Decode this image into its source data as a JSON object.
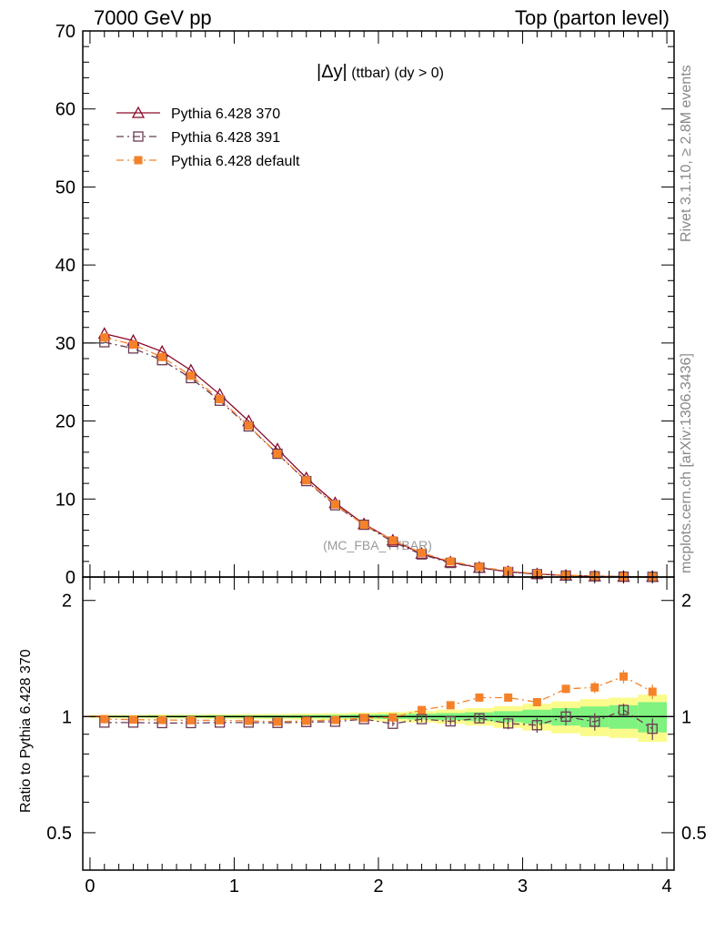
{
  "header": {
    "left": "7000 GeV pp",
    "right": "Top (parton level)"
  },
  "side": {
    "rivet": "Rivet 3.1.10, ≥ 2.8M events",
    "mcplots": "mcplots.cern.ch [arXiv:1306.3436]"
  },
  "plot": {
    "title_main": "|Δy|",
    "title_sub": " (ttbar) (dy > 0)",
    "watermark": "(MC_FBA_TTBAR)",
    "ratio_ylabel": "Ratio to Pythia 6.428 370"
  },
  "colors": {
    "series_370": "#8b0a2a",
    "series_391": "#6b3a52",
    "series_default": "#f5822a",
    "band_green": "#7ff27f",
    "band_yellow": "#fbfb8c"
  },
  "chart_data": [
    {
      "type": "line",
      "x": [
        0.1,
        0.3,
        0.5,
        0.7,
        0.9,
        1.1,
        1.3,
        1.5,
        1.7,
        1.9,
        2.1,
        2.3,
        2.5,
        2.7,
        2.9,
        3.1,
        3.3,
        3.5,
        3.7,
        3.9
      ],
      "xlim": [
        -0.05,
        4.05
      ],
      "ylim": [
        0,
        70
      ],
      "xticks": [
        0,
        1,
        2,
        3,
        4
      ],
      "yticks": [
        0,
        10,
        20,
        30,
        40,
        50,
        60,
        70
      ],
      "legend_position": "top-left",
      "series": [
        {
          "name": "Pythia 6.428 370",
          "marker": "triangle",
          "line": "solid",
          "values": [
            31.2,
            30.3,
            28.9,
            26.5,
            23.4,
            20.0,
            16.4,
            12.7,
            9.5,
            6.8,
            4.7,
            3.0,
            1.9,
            1.2,
            0.68,
            0.39,
            0.19,
            0.1,
            0.05,
            0.03
          ]
        },
        {
          "name": "Pythia 6.428 391",
          "marker": "open-square",
          "line": "dashdot",
          "values": [
            30.1,
            29.3,
            27.8,
            25.5,
            22.6,
            19.3,
            15.8,
            12.3,
            9.2,
            6.7,
            4.5,
            2.9,
            1.8,
            1.2,
            0.65,
            0.37,
            0.19,
            0.097,
            0.052,
            0.028
          ]
        },
        {
          "name": "Pythia 6.428 default",
          "marker": "filled-square",
          "line": "dashdot",
          "values": [
            30.7,
            29.8,
            28.2,
            25.8,
            22.8,
            19.4,
            15.8,
            12.4,
            9.3,
            6.7,
            4.7,
            3.1,
            2.0,
            1.3,
            0.76,
            0.43,
            0.23,
            0.12,
            0.065,
            0.035
          ]
        }
      ]
    },
    {
      "type": "line",
      "ylabel": "Ratio to Pythia 6.428 370",
      "x": [
        0.1,
        0.3,
        0.5,
        0.7,
        0.9,
        1.1,
        1.3,
        1.5,
        1.7,
        1.9,
        2.1,
        2.3,
        2.5,
        2.7,
        2.9,
        3.1,
        3.3,
        3.5,
        3.7,
        3.9
      ],
      "xlim": [
        -0.05,
        4.05
      ],
      "ylim": [
        0.4,
        2.3
      ],
      "log_y": true,
      "xticks": [
        0,
        1,
        2,
        3,
        4
      ],
      "yticks": [
        0.5,
        1,
        2
      ],
      "band_green_halfwidth": [
        0.005,
        0.005,
        0.006,
        0.006,
        0.007,
        0.007,
        0.008,
        0.009,
        0.01,
        0.012,
        0.014,
        0.017,
        0.021,
        0.026,
        0.033,
        0.042,
        0.052,
        0.062,
        0.07,
        0.09
      ],
      "band_yellow_halfwidth": [
        0.01,
        0.01,
        0.012,
        0.012,
        0.014,
        0.015,
        0.016,
        0.018,
        0.02,
        0.024,
        0.028,
        0.034,
        0.042,
        0.052,
        0.065,
        0.08,
        0.095,
        0.11,
        0.12,
        0.14
      ],
      "series": [
        {
          "name": "Pythia 6.428 391",
          "marker": "open-square",
          "line": "dashdot",
          "values": [
            0.965,
            0.965,
            0.962,
            0.962,
            0.965,
            0.965,
            0.963,
            0.968,
            0.97,
            0.985,
            0.958,
            0.985,
            0.972,
            0.99,
            0.96,
            0.95,
            1.0,
            0.97,
            1.04,
            0.93
          ],
          "errors": [
            0.005,
            0.005,
            0.006,
            0.006,
            0.007,
            0.007,
            0.008,
            0.009,
            0.01,
            0.012,
            0.014,
            0.017,
            0.021,
            0.026,
            0.033,
            0.042,
            0.052,
            0.05,
            0.04,
            0.06
          ]
        },
        {
          "name": "Pythia 6.428 default",
          "marker": "filled-square",
          "line": "dashdot",
          "values": [
            0.985,
            0.982,
            0.98,
            0.978,
            0.978,
            0.975,
            0.97,
            0.975,
            0.98,
            0.992,
            0.995,
            1.04,
            1.07,
            1.12,
            1.12,
            1.09,
            1.18,
            1.19,
            1.27,
            1.16
          ],
          "errors": [
            0.005,
            0.005,
            0.006,
            0.006,
            0.007,
            0.007,
            0.008,
            0.009,
            0.01,
            0.012,
            0.014,
            0.017,
            0.021,
            0.02,
            0.02,
            0.025,
            0.03,
            0.04,
            0.05,
            0.05
          ]
        }
      ]
    }
  ]
}
